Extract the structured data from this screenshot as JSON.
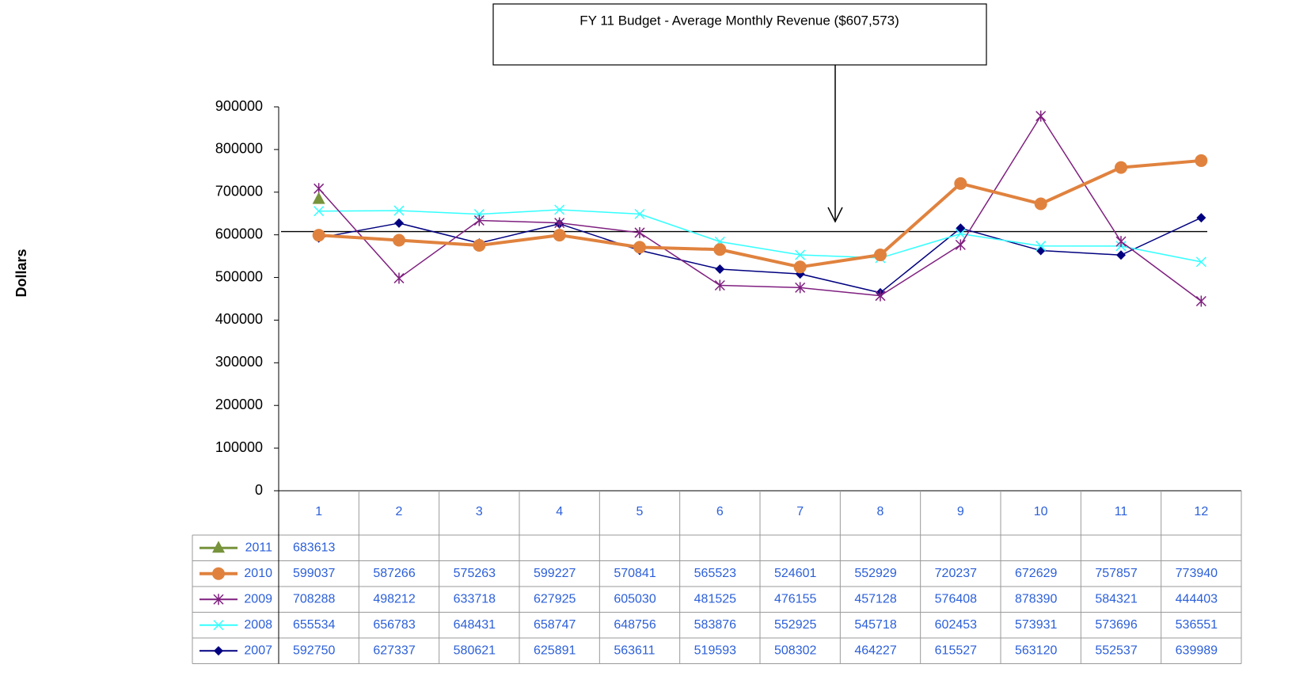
{
  "chart_data": {
    "type": "line",
    "annotation": "FY 11 Budget - Average Monthly Revenue ($607,573)",
    "budget_line": 607573,
    "y_label": "Dollars",
    "categories": [
      "1",
      "2",
      "3",
      "4",
      "5",
      "6",
      "7",
      "8",
      "9",
      "10",
      "11",
      "12"
    ],
    "ylim": [
      0,
      900000
    ],
    "yticks": [
      0,
      100000,
      200000,
      300000,
      400000,
      500000,
      600000,
      700000,
      800000,
      900000
    ],
    "series": [
      {
        "name": "2011",
        "color": "#77933c",
        "marker": "triangle",
        "width": 3,
        "values": [
          683613,
          null,
          null,
          null,
          null,
          null,
          null,
          null,
          null,
          null,
          null,
          null
        ]
      },
      {
        "name": "2010",
        "color": "#e0823e",
        "marker": "circle",
        "width": 4,
        "values": [
          599037,
          587266,
          575263,
          599227,
          570841,
          565523,
          524601,
          552929,
          720237,
          672629,
          757857,
          773940
        ]
      },
      {
        "name": "2009",
        "color": "#7f1f7f",
        "marker": "star",
        "width": 1.5,
        "values": [
          708288,
          498212,
          633718,
          627925,
          605030,
          481525,
          476155,
          457128,
          576408,
          878390,
          584321,
          444403
        ]
      },
      {
        "name": "2008",
        "color": "#33ffff",
        "marker": "x",
        "width": 1.5,
        "values": [
          655534,
          656783,
          648431,
          658747,
          648756,
          583876,
          552925,
          545718,
          602453,
          573931,
          573696,
          536551
        ]
      },
      {
        "name": "2007",
        "color": "#000080",
        "marker": "diamond",
        "width": 1.5,
        "values": [
          592750,
          627337,
          580621,
          625891,
          563611,
          519593,
          508302,
          464227,
          615527,
          563120,
          552537,
          639989
        ]
      }
    ]
  }
}
